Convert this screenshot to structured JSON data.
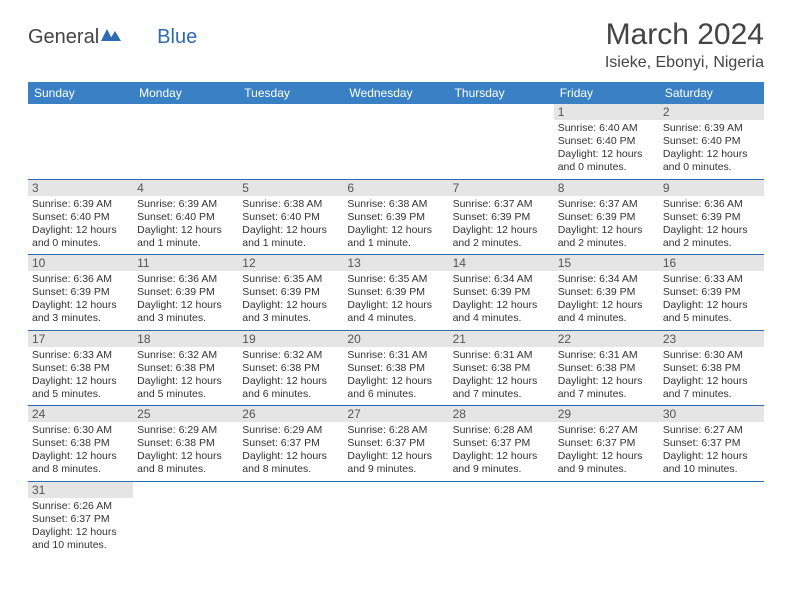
{
  "header": {
    "logo_general": "General",
    "logo_blue": "Blue",
    "month_title": "March 2024",
    "location": "Isieke, Ebonyi, Nigeria"
  },
  "colors": {
    "header_bar": "#3a80c4",
    "week_divider": "#2d6bb0",
    "daynum_bg": "#e5e5e5",
    "text": "#333333",
    "title_text": "#444444",
    "logo_blue": "#2d6bb0"
  },
  "weekday_labels": [
    "Sunday",
    "Monday",
    "Tuesday",
    "Wednesday",
    "Thursday",
    "Friday",
    "Saturday"
  ],
  "first_weekday_index": 5,
  "days": [
    {
      "n": 1,
      "sunrise": "6:40 AM",
      "sunset": "6:40 PM",
      "daylight": "12 hours and 0 minutes."
    },
    {
      "n": 2,
      "sunrise": "6:39 AM",
      "sunset": "6:40 PM",
      "daylight": "12 hours and 0 minutes."
    },
    {
      "n": 3,
      "sunrise": "6:39 AM",
      "sunset": "6:40 PM",
      "daylight": "12 hours and 0 minutes."
    },
    {
      "n": 4,
      "sunrise": "6:39 AM",
      "sunset": "6:40 PM",
      "daylight": "12 hours and 1 minute."
    },
    {
      "n": 5,
      "sunrise": "6:38 AM",
      "sunset": "6:40 PM",
      "daylight": "12 hours and 1 minute."
    },
    {
      "n": 6,
      "sunrise": "6:38 AM",
      "sunset": "6:39 PM",
      "daylight": "12 hours and 1 minute."
    },
    {
      "n": 7,
      "sunrise": "6:37 AM",
      "sunset": "6:39 PM",
      "daylight": "12 hours and 2 minutes."
    },
    {
      "n": 8,
      "sunrise": "6:37 AM",
      "sunset": "6:39 PM",
      "daylight": "12 hours and 2 minutes."
    },
    {
      "n": 9,
      "sunrise": "6:36 AM",
      "sunset": "6:39 PM",
      "daylight": "12 hours and 2 minutes."
    },
    {
      "n": 10,
      "sunrise": "6:36 AM",
      "sunset": "6:39 PM",
      "daylight": "12 hours and 3 minutes."
    },
    {
      "n": 11,
      "sunrise": "6:36 AM",
      "sunset": "6:39 PM",
      "daylight": "12 hours and 3 minutes."
    },
    {
      "n": 12,
      "sunrise": "6:35 AM",
      "sunset": "6:39 PM",
      "daylight": "12 hours and 3 minutes."
    },
    {
      "n": 13,
      "sunrise": "6:35 AM",
      "sunset": "6:39 PM",
      "daylight": "12 hours and 4 minutes."
    },
    {
      "n": 14,
      "sunrise": "6:34 AM",
      "sunset": "6:39 PM",
      "daylight": "12 hours and 4 minutes."
    },
    {
      "n": 15,
      "sunrise": "6:34 AM",
      "sunset": "6:39 PM",
      "daylight": "12 hours and 4 minutes."
    },
    {
      "n": 16,
      "sunrise": "6:33 AM",
      "sunset": "6:39 PM",
      "daylight": "12 hours and 5 minutes."
    },
    {
      "n": 17,
      "sunrise": "6:33 AM",
      "sunset": "6:38 PM",
      "daylight": "12 hours and 5 minutes."
    },
    {
      "n": 18,
      "sunrise": "6:32 AM",
      "sunset": "6:38 PM",
      "daylight": "12 hours and 5 minutes."
    },
    {
      "n": 19,
      "sunrise": "6:32 AM",
      "sunset": "6:38 PM",
      "daylight": "12 hours and 6 minutes."
    },
    {
      "n": 20,
      "sunrise": "6:31 AM",
      "sunset": "6:38 PM",
      "daylight": "12 hours and 6 minutes."
    },
    {
      "n": 21,
      "sunrise": "6:31 AM",
      "sunset": "6:38 PM",
      "daylight": "12 hours and 7 minutes."
    },
    {
      "n": 22,
      "sunrise": "6:31 AM",
      "sunset": "6:38 PM",
      "daylight": "12 hours and 7 minutes."
    },
    {
      "n": 23,
      "sunrise": "6:30 AM",
      "sunset": "6:38 PM",
      "daylight": "12 hours and 7 minutes."
    },
    {
      "n": 24,
      "sunrise": "6:30 AM",
      "sunset": "6:38 PM",
      "daylight": "12 hours and 8 minutes."
    },
    {
      "n": 25,
      "sunrise": "6:29 AM",
      "sunset": "6:38 PM",
      "daylight": "12 hours and 8 minutes."
    },
    {
      "n": 26,
      "sunrise": "6:29 AM",
      "sunset": "6:37 PM",
      "daylight": "12 hours and 8 minutes."
    },
    {
      "n": 27,
      "sunrise": "6:28 AM",
      "sunset": "6:37 PM",
      "daylight": "12 hours and 9 minutes."
    },
    {
      "n": 28,
      "sunrise": "6:28 AM",
      "sunset": "6:37 PM",
      "daylight": "12 hours and 9 minutes."
    },
    {
      "n": 29,
      "sunrise": "6:27 AM",
      "sunset": "6:37 PM",
      "daylight": "12 hours and 9 minutes."
    },
    {
      "n": 30,
      "sunrise": "6:27 AM",
      "sunset": "6:37 PM",
      "daylight": "12 hours and 10 minutes."
    },
    {
      "n": 31,
      "sunrise": "6:26 AM",
      "sunset": "6:37 PM",
      "daylight": "12 hours and 10 minutes."
    }
  ],
  "labels": {
    "sunrise": "Sunrise:",
    "sunset": "Sunset:",
    "daylight": "Daylight:"
  }
}
